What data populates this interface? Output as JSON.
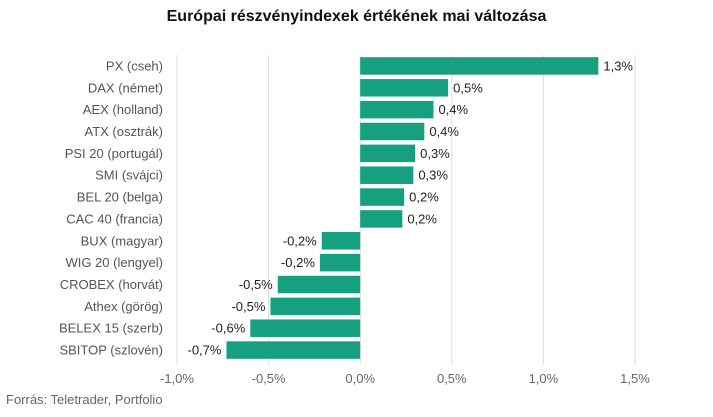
{
  "title": "Európai részvényindexek értékének mai változása",
  "source": "Forrás: Teletrader, Portfolio",
  "colors": {
    "bar": "#17a07f",
    "grid": "#dddddd"
  },
  "chart_data": {
    "type": "bar",
    "orientation": "horizontal",
    "title": "Európai részvényindexek értékének mai változása",
    "categories": [
      "PX (cseh)",
      "DAX (német)",
      "AEX (holland)",
      "ATX (osztrák)",
      "PSI 20 (portugál)",
      "SMI (svájci)",
      "BEL 20 (belga)",
      "CAC 40 (francia)",
      "BUX (magyar)",
      "WIG 20 (lengyel)",
      "CROBEX (horvát)",
      "Athex (görög)",
      "BELEX 15 (szerb)",
      "SBITOP (szlovén)"
    ],
    "values": [
      1.3,
      0.48,
      0.4,
      0.35,
      0.3,
      0.29,
      0.24,
      0.23,
      -0.21,
      -0.22,
      -0.45,
      -0.49,
      -0.6,
      -0.73
    ],
    "data_labels": [
      "1,3%",
      "0,5%",
      "0,4%",
      "0,4%",
      "0,3%",
      "0,3%",
      "0,2%",
      "0,2%",
      "-0,2%",
      "-0,2%",
      "-0,5%",
      "-0,5%",
      "-0,6%",
      "-0,7%"
    ],
    "xlim": [
      -1.0,
      1.5
    ],
    "xticks": [
      -1.0,
      -0.5,
      0.0,
      0.5,
      1.0,
      1.5
    ],
    "xtick_labels": [
      "-1,0%",
      "-0,5%",
      "0,0%",
      "0,5%",
      "1,0%",
      "1,5%"
    ],
    "grid": "vertical",
    "legend": "none"
  }
}
